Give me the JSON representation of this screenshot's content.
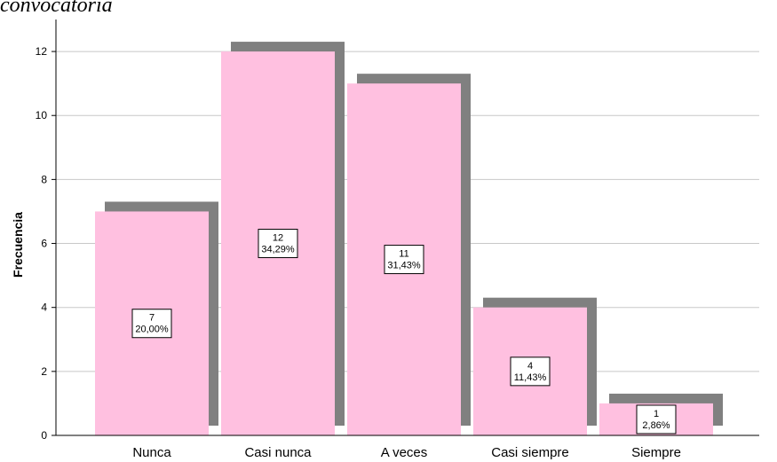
{
  "title_partial": "convocatoria",
  "chart_data": {
    "type": "bar",
    "categories": [
      "Nunca",
      "Casi nunca",
      "A veces",
      "Casi siempre",
      "Siempre"
    ],
    "values": [
      7,
      12,
      11,
      4,
      1
    ],
    "percent_labels": [
      "20,00%",
      "34,29%",
      "31,43%",
      "11,43%",
      "2,86%"
    ],
    "title": "",
    "xlabel": "",
    "ylabel": "Frecuencia",
    "ylim": [
      0,
      13
    ],
    "yticks": [
      0,
      2,
      4,
      6,
      8,
      10,
      12
    ],
    "grid": true,
    "bar_color": "#ffc0e0",
    "shadow_color": "#808080",
    "grid_color": "#c8c8c8"
  }
}
